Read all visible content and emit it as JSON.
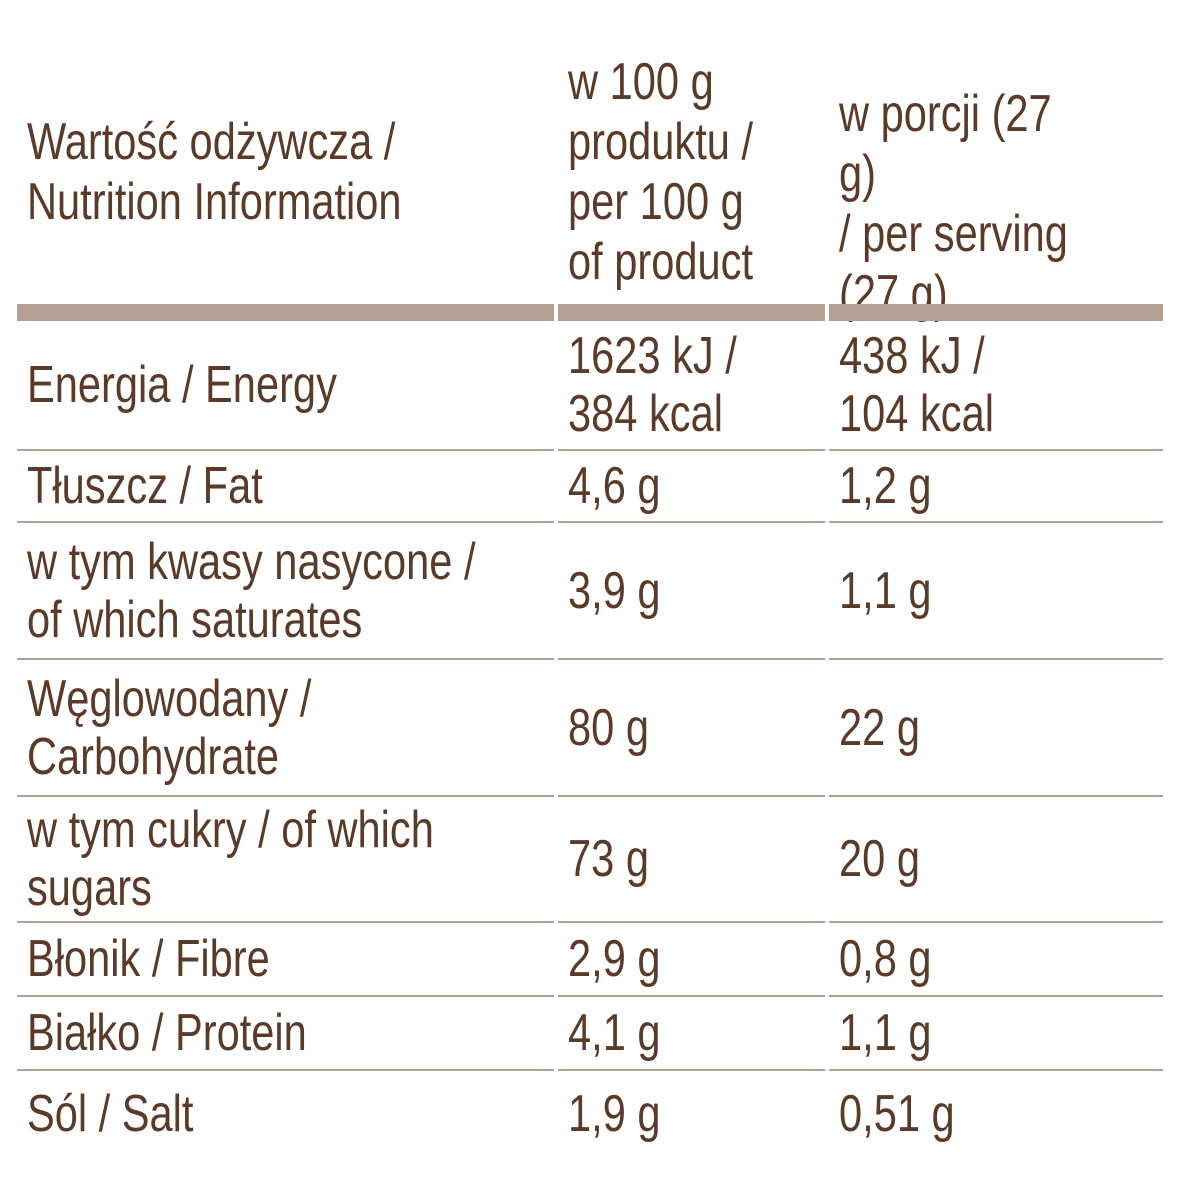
{
  "header": {
    "col1": "Wartość odżywcza /\nNutrition Information",
    "col2": "w 100 g\nproduktu /\nper 100 g\nof product",
    "col3": "w porcji (27 g)\n/ per serving\n(27 g)"
  },
  "rows": [
    {
      "label": [
        "Energia / Energy"
      ],
      "per100": [
        "1623 kJ /",
        "384 kcal"
      ],
      "serving": [
        "438 kJ /",
        "104 kcal"
      ]
    },
    {
      "label": [
        "Tłuszcz / Fat"
      ],
      "per100": [
        "4,6 g"
      ],
      "serving": [
        "1,2 g"
      ]
    },
    {
      "label": [
        "w tym kwasy nasycone /",
        "of which saturates"
      ],
      "per100": [
        "3,9 g"
      ],
      "serving": [
        "1,1 g"
      ]
    },
    {
      "label": [
        "Węglowodany /",
        "Carbohydrate"
      ],
      "per100": [
        "80 g"
      ],
      "serving": [
        "22 g"
      ]
    },
    {
      "label": [
        "w tym cukry / of which",
        "sugars"
      ],
      "per100": [
        "73 g"
      ],
      "serving": [
        "20 g"
      ]
    },
    {
      "label": [
        "Błonik / Fibre"
      ],
      "per100": [
        "2,9 g"
      ],
      "serving": [
        "0,8 g"
      ]
    },
    {
      "label": [
        "Białko / Protein"
      ],
      "per100": [
        "4,1 g"
      ],
      "serving": [
        "1,1 g"
      ]
    },
    {
      "label": [
        "Sól / Salt"
      ],
      "per100": [
        "1,9 g"
      ],
      "serving": [
        "0,51 g"
      ]
    }
  ],
  "colors": {
    "text": "#5a3a28",
    "rule": "#b3a093"
  }
}
